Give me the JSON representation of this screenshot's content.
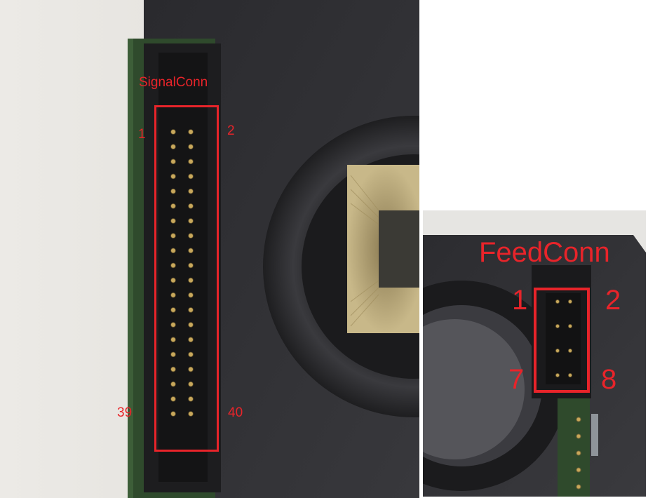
{
  "signal_panel": {
    "connector_name": "SignalConn",
    "pin_top_left": "1",
    "pin_top_right": "2",
    "pin_bottom_left": "39",
    "pin_bottom_right": "40",
    "pin_count": 40
  },
  "feed_panel": {
    "connector_name": "FeedConn",
    "pin_top_left": "1",
    "pin_top_right": "2",
    "pin_bottom_left": "7",
    "pin_bottom_right": "8",
    "pin_count": 8
  },
  "colors": {
    "annotation_red": "#e8242a",
    "pcb_green": "#2f4a2c",
    "housing_dark": "#2b2b2f",
    "wall_bg": "#e7e6e2"
  }
}
